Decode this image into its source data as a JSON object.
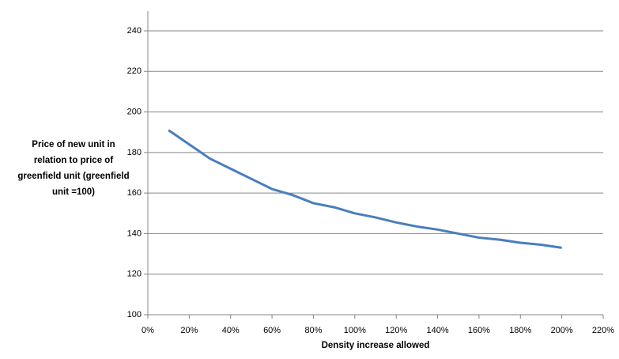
{
  "chart_data": {
    "type": "line",
    "xlabel": "Density increase allowed",
    "ylabel": [
      "Price of new unit in",
      "relation to price of",
      "greenfield unit (greenfield",
      "unit =100)"
    ],
    "x": [
      10,
      20,
      30,
      40,
      50,
      60,
      70,
      80,
      90,
      100,
      110,
      120,
      130,
      140,
      150,
      160,
      170,
      180,
      190,
      200
    ],
    "series": [
      {
        "color": "#4a7ebb",
        "values": [
          191,
          184,
          177,
          172,
          167,
          162,
          159,
          155,
          153,
          150,
          148,
          145.5,
          143.5,
          142,
          140,
          138,
          137,
          135.5,
          134.5,
          133
        ]
      }
    ],
    "xlim": [
      0,
      220
    ],
    "xticks": [
      {
        "value": 0,
        "label": "0%"
      },
      {
        "value": 20,
        "label": "20%"
      },
      {
        "value": 40,
        "label": "40%"
      },
      {
        "value": 60,
        "label": "60%"
      },
      {
        "value": 80,
        "label": "80%"
      },
      {
        "value": 100,
        "label": "100%"
      },
      {
        "value": 120,
        "label": "120%"
      },
      {
        "value": 140,
        "label": "140%"
      },
      {
        "value": 160,
        "label": "160%"
      },
      {
        "value": 180,
        "label": "180%"
      },
      {
        "value": 200,
        "label": "200%"
      },
      {
        "value": 220,
        "label": "220%"
      }
    ],
    "ylim": [
      100,
      240
    ],
    "yticks": [
      100,
      120,
      140,
      160,
      180,
      200,
      220,
      240
    ],
    "grid": true
  }
}
